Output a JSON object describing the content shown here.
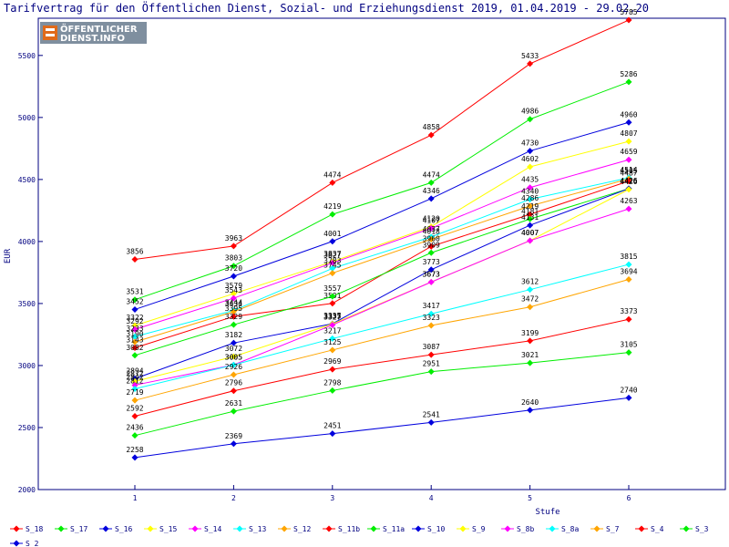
{
  "chart_data": {
    "type": "line",
    "title": "Tarifvertrag für den Öffentlichen Dienst, Sozial- und Erziehungsdienst 2019, 01.04.2019 - 29.02.20",
    "xlabel": "Stufe",
    "ylabel": "EUR",
    "categories": [
      "1",
      "2",
      "3",
      "4",
      "5",
      "6"
    ],
    "ylim": [
      2000,
      5800
    ],
    "yticks": [
      2000,
      2500,
      3000,
      3500,
      4000,
      4500,
      5000,
      5500
    ],
    "grid": false,
    "legend_position": "bottom",
    "series": [
      {
        "name": "S_18",
        "color": "#ff0000",
        "values": [
          3856,
          3963,
          4474,
          4858,
          5433,
          5785
        ]
      },
      {
        "name": "S_17",
        "color": "#00ee00",
        "values": [
          3531,
          3803,
          4219,
          4474,
          4986,
          5286
        ]
      },
      {
        "name": "S_16",
        "color": "#0000dd",
        "values": [
          3452,
          3720,
          4001,
          4346,
          4730,
          4960
        ]
      },
      {
        "name": "S_15",
        "color": "#ffff00",
        "values": [
          3322,
          3579,
          3837,
          4120,
          4602,
          4807
        ]
      },
      {
        "name": "S_14",
        "color": "#ff00ff",
        "values": [
          3292,
          3543,
          3827,
          4107,
          4435,
          4659
        ]
      },
      {
        "name": "S_13",
        "color": "#00ffff",
        "values": [
          3233,
          3444,
          3783,
          4037,
          4340,
          4514
        ]
      },
      {
        "name": "S_12",
        "color": "#ffa500",
        "values": [
          3190,
          3434,
          3745,
          4018,
          4286,
          4505
        ]
      },
      {
        "name": "S_11b",
        "color": "#ff0000",
        "values": [
          3143,
          3395,
          3501,
          3960,
          4219,
          4487
        ]
      },
      {
        "name": "S_11a",
        "color": "#00ee00",
        "values": [
          3082,
          3329,
          3557,
          3909,
          4181,
          4426
        ]
      },
      {
        "name": "S_10",
        "color": "#0000dd",
        "values": [
          2894,
          3182,
          3337,
          3773,
          4131,
          4426
        ]
      },
      {
        "name": "S_9",
        "color": "#ffff00",
        "values": [
          2872,
          3072,
          3335,
          3673,
          4007,
          4420
        ]
      },
      {
        "name": "S_8b",
        "color": "#ff00ff",
        "values": [
          2842,
          3005,
          3327,
          3673,
          4007,
          4263
        ]
      },
      {
        "name": "S_8a",
        "color": "#00ffff",
        "values": [
          2812,
          3005,
          3217,
          3417,
          3612,
          3815
        ]
      },
      {
        "name": "S_7",
        "color": "#ffa500",
        "values": [
          2719,
          2926,
          3125,
          3323,
          3472,
          3694
        ]
      },
      {
        "name": "S_4",
        "color": "#ff0000",
        "values": [
          2592,
          2796,
          2969,
          3087,
          3199,
          3373
        ]
      },
      {
        "name": "S_3",
        "color": "#00ee00",
        "values": [
          2436,
          2631,
          2798,
          2951,
          3021,
          3105
        ]
      },
      {
        "name": "S_2",
        "color": "#0000dd",
        "values": [
          2258,
          2369,
          2451,
          2541,
          2640,
          2740
        ]
      }
    ]
  },
  "logo": {
    "line1": "ÖFFENTLICHER",
    "line2": "DIENST.INFO"
  }
}
